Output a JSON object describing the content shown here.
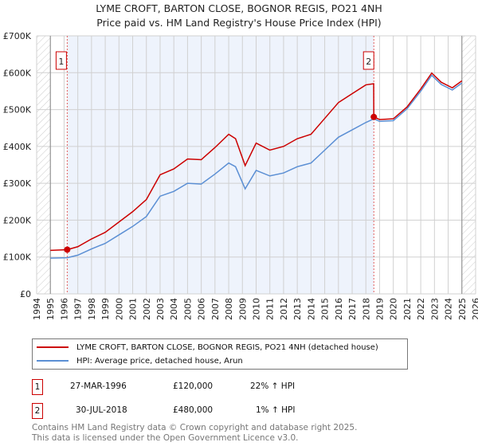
{
  "title": "LYME CROFT, BARTON CLOSE, BOGNOR REGIS, PO21 4NH",
  "subtitle": "Price paid vs. HM Land Registry's House Price Index (HPI)",
  "chart_data": {
    "type": "line",
    "title": "LYME CROFT, BARTON CLOSE, BOGNOR REGIS, PO21 4NH",
    "subtitle": "Price paid vs. HM Land Registry's House Price Index (HPI)",
    "xlim": [
      1994,
      2026
    ],
    "ylim": [
      0,
      700000
    ],
    "yticks": [
      0,
      100000,
      200000,
      300000,
      400000,
      500000,
      600000,
      700000
    ],
    "ytick_labels": [
      "£0",
      "£100K",
      "£200K",
      "£300K",
      "£400K",
      "£500K",
      "£600K",
      "£700K"
    ],
    "xticks": [
      "1994",
      "1995",
      "1996",
      "1997",
      "1998",
      "1999",
      "2000",
      "2001",
      "2002",
      "2003",
      "2004",
      "2005",
      "2006",
      "2007",
      "2008",
      "2009",
      "2010",
      "2011",
      "2012",
      "2013",
      "2014",
      "2015",
      "2016",
      "2017",
      "2018",
      "2019",
      "2020",
      "2021",
      "2022",
      "2023",
      "2024",
      "2025",
      "2026"
    ],
    "grid": true,
    "hatched_ranges": [
      [
        1994,
        1995
      ],
      [
        2025,
        2026
      ]
    ],
    "shaded_range": [
      1996.23,
      2018.58
    ],
    "series": [
      {
        "name": "LYME CROFT, BARTON CLOSE, BOGNOR REGIS, PO21 4NH (detached house)",
        "color": "#cc0000",
        "x": [
          1995,
          1996.23,
          1997,
          1998,
          1999,
          2000,
          2001,
          2002,
          2003,
          2004,
          2005,
          2006,
          2007,
          2008,
          2008.5,
          2009.2,
          2010,
          2011,
          2012,
          2013,
          2014,
          2015,
          2016,
          2017,
          2018,
          2018.57,
          2018.58,
          2019,
          2020,
          2021,
          2022,
          2022.8,
          2023.5,
          2024.3,
          2025
        ],
        "y": [
          118000,
          120000,
          128000,
          149000,
          167000,
          195000,
          223000,
          256000,
          323000,
          339000,
          366000,
          364000,
          397000,
          433000,
          421000,
          348000,
          409000,
          390000,
          400000,
          421000,
          433000,
          476000,
          519000,
          543000,
          567000,
          570000,
          480000,
          473000,
          475000,
          507000,
          556000,
          599000,
          574000,
          559000,
          578000
        ]
      },
      {
        "name": "HPI: Average price, detached house, Arun",
        "color": "#5b8fd4",
        "x": [
          1995,
          1996.23,
          1997,
          1998,
          1999,
          2000,
          2001,
          2002,
          2003,
          2004,
          2005,
          2006,
          2007,
          2008,
          2008.5,
          2009.2,
          2010,
          2011,
          2012,
          2013,
          2014,
          2015,
          2016,
          2017,
          2018,
          2018.58,
          2019,
          2020,
          2021,
          2022,
          2022.8,
          2023.5,
          2024.3,
          2025
        ],
        "y": [
          97000,
          98000,
          105000,
          122000,
          137000,
          160000,
          183000,
          210000,
          265000,
          278000,
          300000,
          298000,
          325000,
          355000,
          345000,
          285000,
          335000,
          320000,
          328000,
          345000,
          355000,
          390000,
          425000,
          445000,
          465000,
          475000,
          468000,
          470000,
          502000,
          550000,
          593000,
          568000,
          553000,
          572000
        ]
      }
    ],
    "sales": [
      {
        "label": "1",
        "x": 1996.23,
        "y": 120000
      },
      {
        "label": "2",
        "x": 2018.58,
        "y": 480000
      }
    ]
  },
  "legend": {
    "property": "LYME CROFT, BARTON CLOSE, BOGNOR REGIS, PO21 4NH (detached house)",
    "hpi": "HPI: Average price, detached house, Arun"
  },
  "transactions": [
    {
      "num": "1",
      "date": "27-MAR-1996",
      "price": "£120,000",
      "hpi": "22% ↑ HPI"
    },
    {
      "num": "2",
      "date": "30-JUL-2018",
      "price": "£480,000",
      "hpi": "1% ↑ HPI"
    }
  ],
  "footer": {
    "line1": "Contains HM Land Registry data © Crown copyright and database right 2025.",
    "line2": "This data is licensed under the Open Government Licence v3.0."
  }
}
